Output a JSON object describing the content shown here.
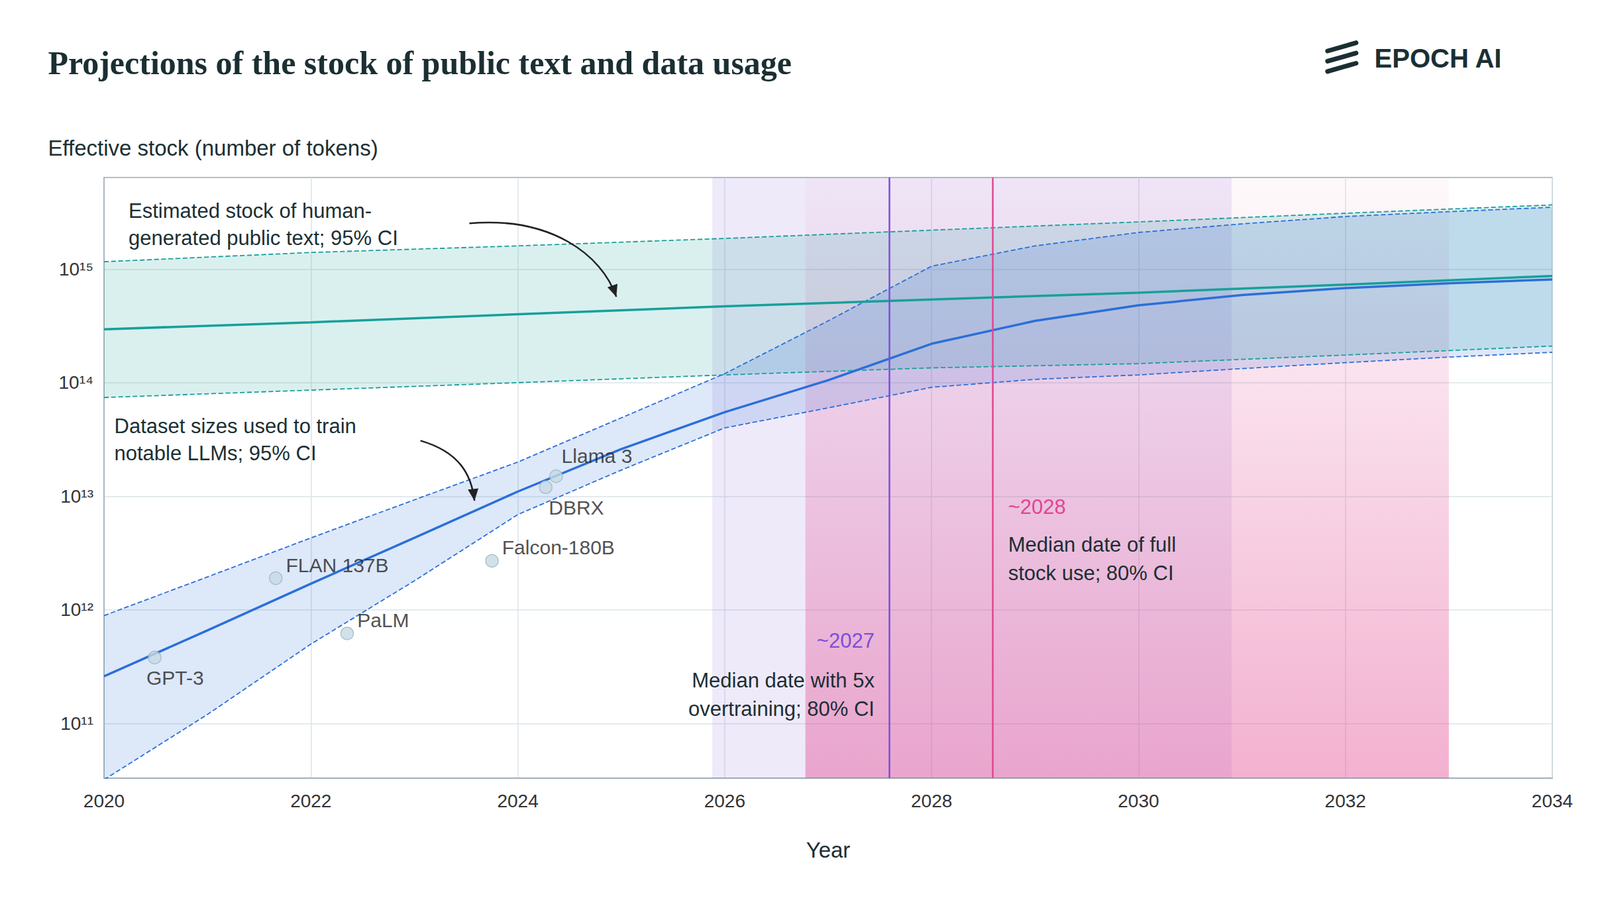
{
  "chart_data": {
    "type": "line",
    "title": "Projections of the stock of public text and data usage",
    "logo": "EPOCH AI",
    "y_label": "Effective stock (number of tokens)",
    "x_label": "Year",
    "log": "y",
    "grid": true,
    "xlim": [
      2020,
      2034
    ],
    "xticks": [
      2020,
      2022,
      2024,
      2026,
      2028,
      2030,
      2032,
      2034
    ],
    "ylim": [
      33000000000.0,
      6400000000000000.0
    ],
    "yticks": [
      {
        "value": 100000000000.0,
        "label": "10¹¹"
      },
      {
        "value": 1000000000000.0,
        "label": "10¹²"
      },
      {
        "value": 10000000000000.0,
        "label": "10¹³"
      },
      {
        "value": 100000000000000.0,
        "label": "10¹⁴"
      },
      {
        "value": 1000000000000000.0,
        "label": "10¹⁵"
      }
    ],
    "series": [
      {
        "label": "Estimated stock of human-\ngenerated public text; 95% CI",
        "color": "#17a09a",
        "x": [
          2020,
          2022,
          2024,
          2026,
          2028,
          2030,
          2032,
          2034
        ],
        "values": [
          295000000000000.0,
          340000000000000.0,
          400000000000000.0,
          470000000000000.0,
          540000000000000.0,
          620000000000000.0,
          730000000000000.0,
          870000000000000.0
        ],
        "lower": [
          74000000000000.0,
          86000000000000.0,
          100000000000000.0,
          117000000000000.0,
          135000000000000.0,
          147000000000000.0,
          175000000000000.0,
          210000000000000.0
        ],
        "upper": [
          1160000000000000.0,
          1400000000000000.0,
          1600000000000000.0,
          1860000000000000.0,
          2200000000000000.0,
          2600000000000000.0,
          3100000000000000.0,
          3670000000000000.0
        ]
      },
      {
        "label": "Dataset sizes used to train\nnotable LLMs; 95% CI",
        "color": "#2b6fd8",
        "x": [
          2020,
          2021,
          2022,
          2023,
          2024,
          2025,
          2026,
          2027,
          2028,
          2029,
          2030,
          2031,
          2032,
          2033,
          2034
        ],
        "values": [
          260000000000.0,
          660000000000.0,
          1700000000000.0,
          4300000000000.0,
          11000000000000.0,
          26000000000000.0,
          55000000000000.0,
          105000000000000.0,
          220000000000000.0,
          350000000000000.0,
          480000000000000.0,
          590000000000000.0,
          680000000000000.0,
          750000000000000.0,
          810000000000000.0
        ],
        "lower": [
          32000000000.0,
          120000000000.0,
          500000000000.0,
          1800000000000.0,
          6900000000000.0,
          17000000000000.0,
          40000000000000.0,
          60000000000000.0,
          91000000000000.0,
          107000000000000.0,
          117000000000000.0,
          133000000000000.0,
          150000000000000.0,
          168000000000000.0,
          185000000000000.0
        ],
        "upper": [
          890000000000.0,
          1950000000000.0,
          4300000000000.0,
          9300000000000.0,
          20000000000000.0,
          49000000000000.0,
          120000000000000.0,
          350000000000000.0,
          1060000000000000.0,
          1600000000000000.0,
          2100000000000000.0,
          2500000000000000.0,
          2900000000000000.0,
          3200000000000000.0,
          3500000000000000.0
        ]
      }
    ],
    "points": {
      "type": "scatter",
      "color": "#c7d9e3",
      "names": [
        "GPT-3",
        "FLAN 137B",
        "PaLM",
        "Falcon-180B",
        "DBRX",
        "Llama 3"
      ],
      "x": [
        2020.49,
        2021.66,
        2022.35,
        2023.75,
        2024.27,
        2024.37
      ],
      "values": [
        380000000000.0,
        1900000000000.0,
        620000000000.0,
        2700000000000.0,
        12000000000000.0,
        15000000000000.0
      ]
    },
    "ranges": [
      {
        "label": "~2027",
        "text": "Median date with 5x\novertraining; 80% CI",
        "median": 2027.59,
        "low": 2025.88,
        "high": 2030.9,
        "color": "#7b4fd8"
      },
      {
        "label": "~2028",
        "text": "Median date of full\nstock use; 80% CI",
        "median": 2028.59,
        "low": 2026.78,
        "high": 2033.0,
        "color": "#e2458f"
      }
    ]
  }
}
